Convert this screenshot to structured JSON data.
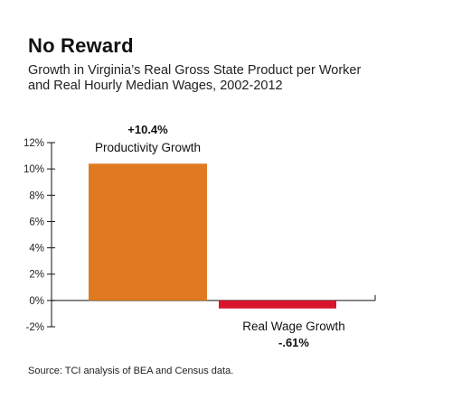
{
  "title": "No Reward",
  "subtitle_line1": "Growth in Virginia’s Real Gross State Product per Worker",
  "subtitle_line2": "and Real Hourly Median Wages, 2002-2012",
  "source": "Source: TCI analysis of BEA and Census data.",
  "chart_data": {
    "type": "bar",
    "categories": [
      "Productivity Growth",
      "Real Wage Growth"
    ],
    "values": [
      10.4,
      -0.61
    ],
    "value_labels": [
      "+10.4%",
      "-.61%"
    ],
    "ylim": [
      -2,
      12
    ],
    "yticks": [
      12,
      10,
      8,
      6,
      4,
      2,
      0,
      -2
    ],
    "ytick_labels": [
      "12%",
      "10%",
      "8%",
      "6%",
      "4%",
      "2%",
      "0%",
      "-2%"
    ],
    "colors": [
      "#e07a22",
      "#d9142e"
    ],
    "grid": false,
    "legend": "none"
  }
}
